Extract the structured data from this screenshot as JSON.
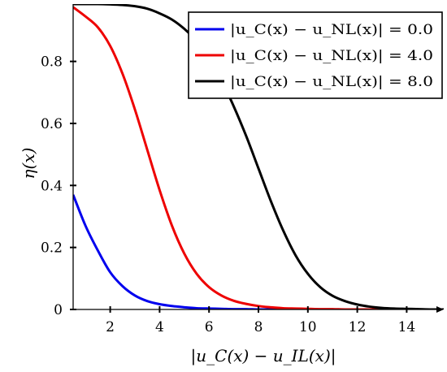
{
  "chart_data": {
    "type": "line",
    "xlabel": "|u_C(x) − u_IL(x)|",
    "ylabel": "η(x)",
    "xlim": [
      0.5,
      15.5
    ],
    "ylim": [
      0,
      0.985
    ],
    "x_ticks": [
      2,
      4,
      6,
      8,
      10,
      12,
      14
    ],
    "y_ticks": [
      0,
      0.2,
      0.4,
      0.6,
      0.8
    ],
    "x_tick_labels": [
      "2",
      "4",
      "6",
      "8",
      "10",
      "12",
      "14"
    ],
    "y_tick_labels": [
      "0",
      "0.2",
      "0.4",
      "0.6",
      "0.8"
    ],
    "grid": false,
    "legend_position": "top-right",
    "x": [
      0.5,
      1,
      1.5,
      2,
      2.5,
      3,
      3.5,
      4,
      4.5,
      5,
      5.5,
      6,
      6.5,
      7,
      7.5,
      8,
      8.5,
      9,
      9.5,
      10,
      10.5,
      11,
      11.5,
      12,
      12.5,
      13,
      13.5,
      14,
      14.5,
      15,
      15.5
    ],
    "series": [
      {
        "name": "|u_C(x) − u_NL(x)| = 0.0",
        "color": "#0000ee",
        "values": [
          0.37,
          0.27,
          0.19,
          0.12,
          0.075,
          0.045,
          0.027,
          0.017,
          0.011,
          0.007,
          0.004,
          0.003,
          0.002,
          0.001,
          0.001,
          0,
          0,
          0,
          0,
          0,
          0,
          0,
          0,
          0,
          0,
          0,
          0,
          0,
          0,
          0,
          0
        ]
      },
      {
        "name": "|u_C(x) − u_NL(x)| = 4.0",
        "color": "#ee0000",
        "values": [
          0.975,
          0.945,
          0.91,
          0.85,
          0.76,
          0.645,
          0.515,
          0.385,
          0.27,
          0.18,
          0.115,
          0.072,
          0.045,
          0.028,
          0.018,
          0.011,
          0.007,
          0.004,
          0.003,
          0.002,
          0.001,
          0.001,
          0,
          0,
          0,
          0,
          0,
          0,
          0,
          0,
          0
        ]
      },
      {
        "name": "|u_C(x) − u_NL(x)| = 8.0",
        "color": "#000000",
        "values": [
          0.985,
          0.985,
          0.985,
          0.984,
          0.982,
          0.978,
          0.97,
          0.955,
          0.935,
          0.905,
          0.865,
          0.81,
          0.74,
          0.655,
          0.56,
          0.455,
          0.35,
          0.255,
          0.175,
          0.115,
          0.072,
          0.044,
          0.027,
          0.016,
          0.009,
          0.005,
          0.003,
          0.002,
          0.001,
          0,
          0
        ]
      }
    ]
  }
}
